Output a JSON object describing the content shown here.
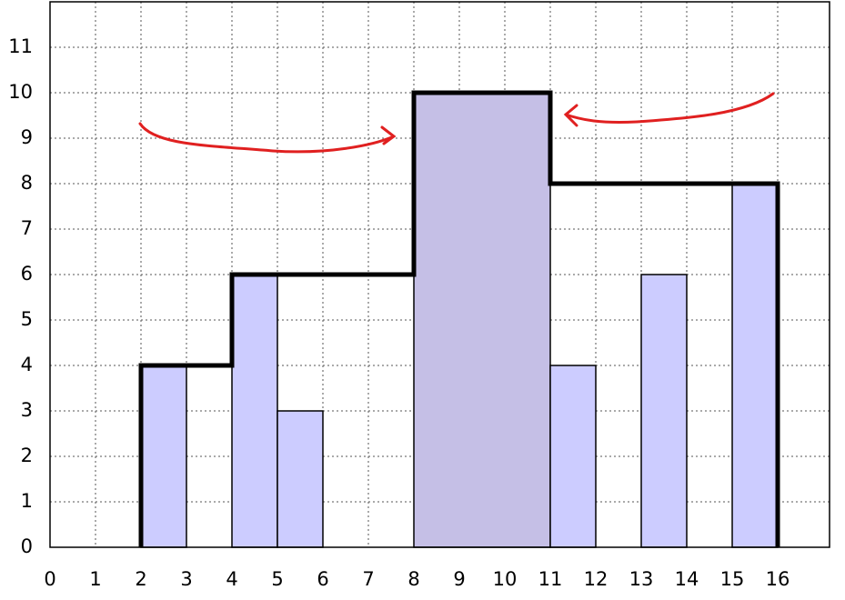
{
  "chart_data": {
    "type": "bar",
    "bar_left": [
      2,
      4,
      5,
      8,
      11,
      13,
      15
    ],
    "bar_right": [
      3,
      5,
      6,
      11,
      12,
      14,
      16
    ],
    "values": [
      4,
      6,
      3,
      10,
      4,
      6,
      8
    ],
    "colors": [
      "#ccccff",
      "#ccccff",
      "#ccccff",
      "#c5bfe6",
      "#ccccff",
      "#ccccff",
      "#ccccff"
    ],
    "outline": {
      "color": "#000000",
      "x": [
        2,
        2,
        4,
        4,
        8,
        8,
        11,
        11,
        16,
        16
      ],
      "y": [
        0,
        4,
        4,
        6,
        6,
        10,
        10,
        8,
        8,
        0
      ]
    },
    "xlim": [
      0,
      17
    ],
    "ylim": [
      0,
      12
    ],
    "xticks": [
      0,
      1,
      2,
      3,
      4,
      5,
      6,
      7,
      8,
      9,
      10,
      11,
      12,
      13,
      14,
      15,
      16
    ],
    "yticks": [
      0,
      1,
      2,
      3,
      4,
      5,
      6,
      7,
      8,
      9,
      10,
      11
    ],
    "grid": true
  }
}
